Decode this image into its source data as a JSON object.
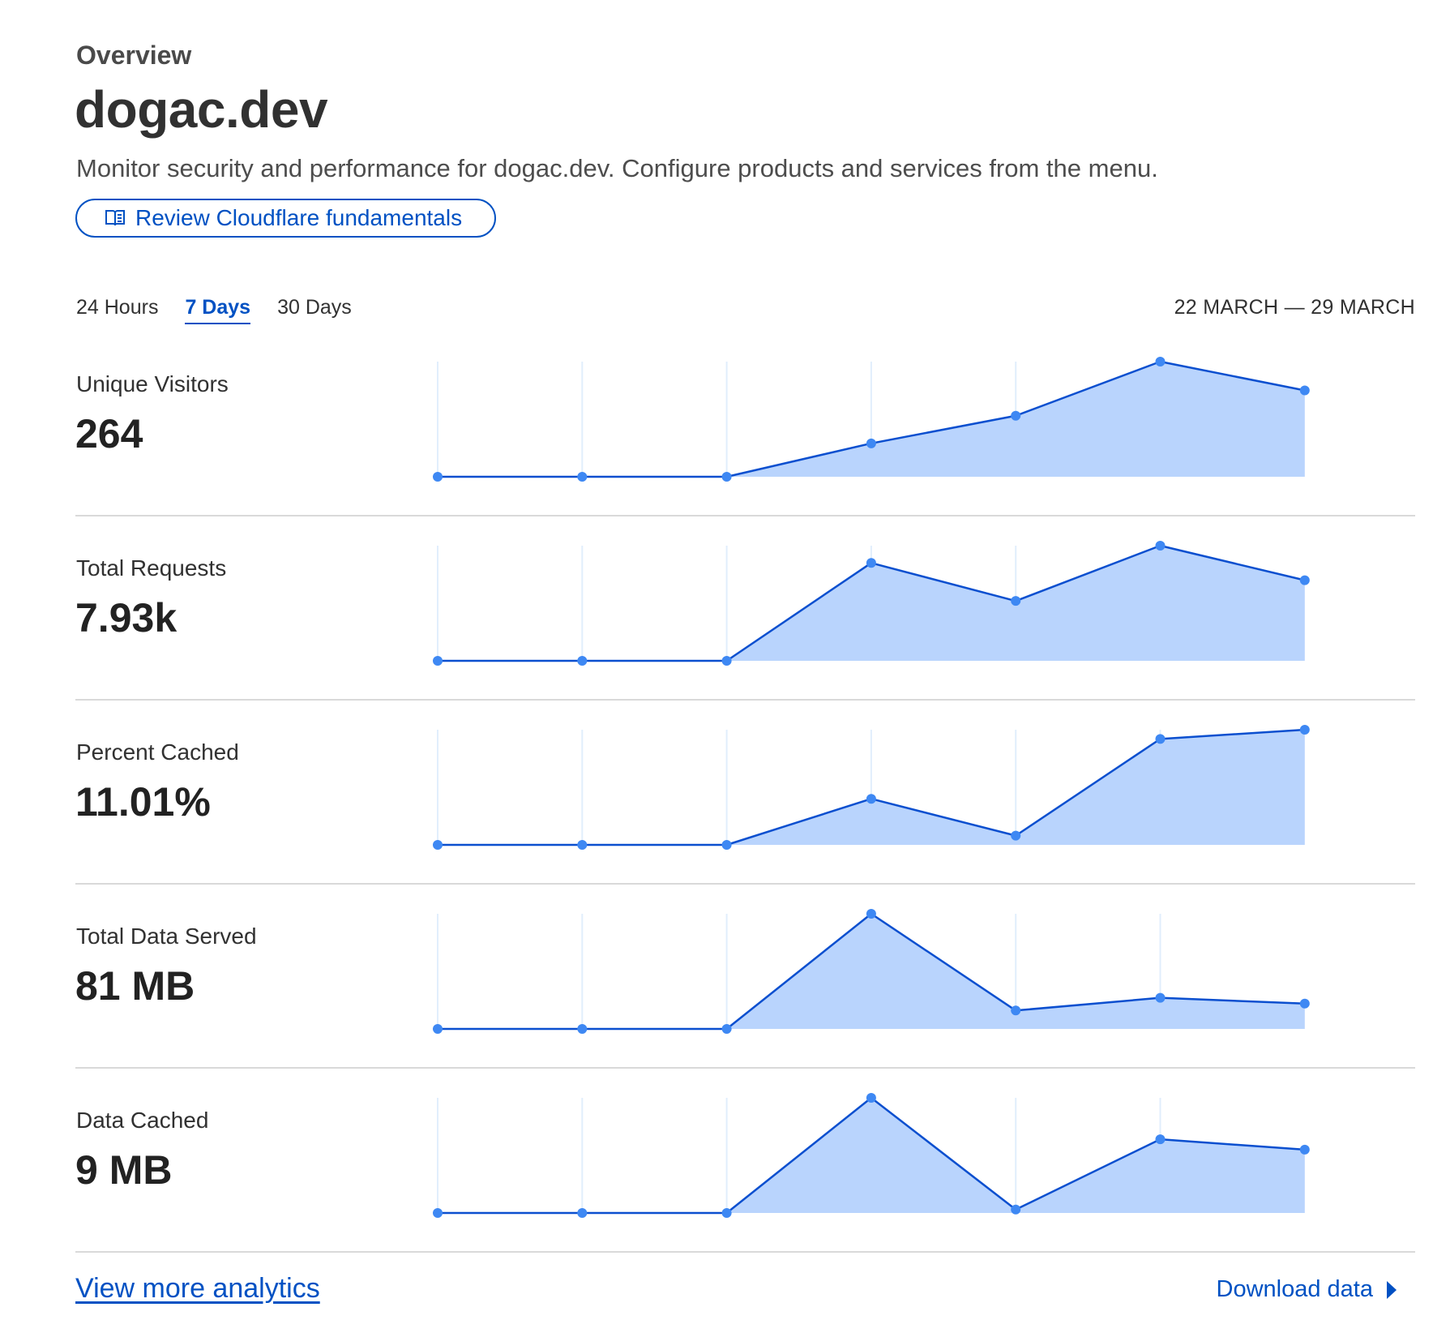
{
  "header": {
    "eyebrow": "Overview",
    "title": "dogac.dev",
    "subtitle": "Monitor security and performance for dogac.dev. Configure products and services from the menu.",
    "fundamentals_button": "Review Cloudflare fundamentals",
    "fundamentals_icon": "book-icon"
  },
  "time_range": {
    "tabs": [
      "24 Hours",
      "7 Days",
      "30 Days"
    ],
    "selected": "7 Days",
    "date_range": "22 MARCH — 29 MARCH"
  },
  "colors": {
    "accent": "#0051c3",
    "line": "#0b4fcf",
    "point": "#3e88f3",
    "area": "#b9d4fd",
    "gridline": "#e1eefc",
    "divider": "#d9d9d9"
  },
  "metrics": [
    {
      "label": "Unique Visitors",
      "value": "264"
    },
    {
      "label": "Total Requests",
      "value": "7.93k"
    },
    {
      "label": "Percent Cached",
      "value": "11.01%"
    },
    {
      "label": "Total Data Served",
      "value": "81 MB"
    },
    {
      "label": "Data Cached",
      "value": "9 MB"
    }
  ],
  "chart_data": [
    {
      "type": "area",
      "metric": "Unique Visitors",
      "points": 7,
      "values": [
        0,
        0,
        0,
        0.29,
        0.53,
        1.0,
        0.75
      ],
      "scale": "relative"
    },
    {
      "type": "area",
      "metric": "Total Requests",
      "points": 7,
      "values": [
        0,
        0,
        0,
        0.85,
        0.52,
        1.0,
        0.7
      ],
      "scale": "relative"
    },
    {
      "type": "area",
      "metric": "Percent Cached",
      "points": 7,
      "values": [
        0,
        0,
        0,
        0.4,
        0.08,
        0.92,
        1.0
      ],
      "scale": "relative"
    },
    {
      "type": "area",
      "metric": "Total Data Served",
      "points": 7,
      "values": [
        0,
        0,
        0,
        1.0,
        0.16,
        0.27,
        0.22
      ],
      "scale": "relative"
    },
    {
      "type": "area",
      "metric": "Data Cached",
      "points": 7,
      "values": [
        0,
        0,
        0,
        1.0,
        0.03,
        0.64,
        0.55
      ],
      "scale": "relative"
    }
  ],
  "footer": {
    "view_more": "View more analytics",
    "download": "Download data",
    "download_icon": "caret-right-icon"
  }
}
